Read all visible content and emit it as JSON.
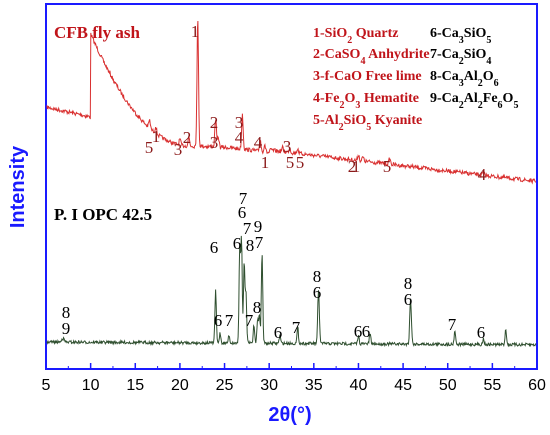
{
  "chart_data": {
    "type": "line",
    "xlabel": "2θ(°)",
    "ylabel": "Intensity",
    "xlim": [
      5,
      60
    ],
    "x_ticks": [
      "5",
      "10",
      "15",
      "20",
      "25",
      "30",
      "35",
      "40",
      "45",
      "50",
      "55",
      "60"
    ],
    "colors": {
      "frame": "#1a1aff",
      "cfb": "#d93030",
      "cfb_label": "#8b1a1a",
      "opc": "#2f4f2f",
      "opc_label": "#000000"
    },
    "series": [
      {
        "name": "CFB fly ash",
        "peaks": [
          {
            "x": 16.6,
            "label": "5"
          },
          {
            "x": 17.3,
            "label": "1"
          },
          {
            "x": 20.0,
            "label": "3"
          },
          {
            "x": 21.0,
            "label": "2"
          },
          {
            "x": 22.0,
            "label": "1"
          },
          {
            "x": 24.0,
            "label": "2"
          },
          {
            "x": 24.3,
            "label": "3"
          },
          {
            "x": 27.0,
            "label": "3"
          },
          {
            "x": 27.0,
            "label": "4"
          },
          {
            "x": 29.0,
            "label": "4"
          },
          {
            "x": 29.5,
            "label": "1"
          },
          {
            "x": 31.5,
            "label": "3"
          },
          {
            "x": 32.3,
            "label": "5"
          },
          {
            "x": 33.2,
            "label": "5"
          },
          {
            "x": 40.0,
            "label": "2"
          },
          {
            "x": 40.5,
            "label": "1"
          },
          {
            "x": 43.5,
            "label": "5"
          },
          {
            "x": 54.0,
            "label": "4"
          }
        ]
      },
      {
        "name": "P. I OPC 42.5",
        "peaks": [
          {
            "x": 6.8,
            "label": "8"
          },
          {
            "x": 7.0,
            "label": "9"
          },
          {
            "x": 24.0,
            "label": "6"
          },
          {
            "x": 24.5,
            "label": "6"
          },
          {
            "x": 25.5,
            "label": "7"
          },
          {
            "x": 26.7,
            "label": "6"
          },
          {
            "x": 26.9,
            "label": "7"
          },
          {
            "x": 27.2,
            "label": "6"
          },
          {
            "x": 27.4,
            "label": "7"
          },
          {
            "x": 28.3,
            "label": "8"
          },
          {
            "x": 28.7,
            "label": "9"
          },
          {
            "x": 28.9,
            "label": "7"
          },
          {
            "x": 29.2,
            "label": "8"
          },
          {
            "x": 31.2,
            "label": "7"
          },
          {
            "x": 33.2,
            "label": "6"
          },
          {
            "x": 35.5,
            "label": "7"
          },
          {
            "x": 35.6,
            "label": "8"
          },
          {
            "x": 40.0,
            "label": "6"
          },
          {
            "x": 41.3,
            "label": "6"
          },
          {
            "x": 45.8,
            "label": "6"
          },
          {
            "x": 45.9,
            "label": "8"
          },
          {
            "x": 50.8,
            "label": "6"
          },
          {
            "x": 54.0,
            "label": "7"
          },
          {
            "x": 56.5,
            "label": "6"
          }
        ]
      }
    ],
    "legend": [
      {
        "text": "1-SiO2 Quartz",
        "label": "1-SiO",
        "sub": "2",
        "rest": " Quartz",
        "color": "#c0141a"
      },
      {
        "text": "2-CaSO4 Anhydrite",
        "label": "2-CaSO",
        "sub": "4",
        "rest": " Anhydrite",
        "color": "#c0141a"
      },
      {
        "text": "3-f-CaO Free lime",
        "label": "3-f-CaO Free lime",
        "sub": "",
        "rest": "",
        "color": "#c0141a"
      },
      {
        "text": "4-Fe2O3 Hematite",
        "parts": [
          [
            "4-Fe",
            ""
          ],
          [
            "2",
            "sub"
          ],
          [
            "O",
            ""
          ],
          [
            "3",
            "sub"
          ],
          [
            "  Hematite",
            ""
          ]
        ],
        "color": "#c0141a"
      },
      {
        "text": "5-Al2SiO5 Kyanite",
        "parts": [
          [
            "5-Al",
            ""
          ],
          [
            "2",
            "sub"
          ],
          [
            "SiO",
            ""
          ],
          [
            "5",
            "sub"
          ],
          [
            " Kyanite",
            ""
          ]
        ],
        "color": "#c0141a"
      },
      {
        "text": "6-Ca3SiO5",
        "parts": [
          [
            "6-Ca",
            ""
          ],
          [
            "3",
            "sub"
          ],
          [
            "SiO",
            ""
          ],
          [
            "5",
            "sub"
          ]
        ],
        "color": "#000000"
      },
      {
        "text": "7-Ca2SiO4",
        "parts": [
          [
            "7-Ca",
            ""
          ],
          [
            "2",
            "sub"
          ],
          [
            "SiO",
            ""
          ],
          [
            "4",
            "sub"
          ]
        ],
        "color": "#000000"
      },
      {
        "text": "8-Ca3Al2O6",
        "parts": [
          [
            "8-Ca",
            ""
          ],
          [
            "3",
            "sub"
          ],
          [
            "Al",
            ""
          ],
          [
            "2",
            "sub"
          ],
          [
            "O",
            ""
          ],
          [
            "6",
            "sub"
          ]
        ],
        "color": "#000000"
      },
      {
        "text": "9-Ca2Al2Fe6O5",
        "parts": [
          [
            "9-Ca",
            ""
          ],
          [
            "2",
            "sub"
          ],
          [
            "Al",
            ""
          ],
          [
            "2",
            "sub"
          ],
          [
            "Fe",
            ""
          ],
          [
            "6",
            "sub"
          ],
          [
            "O",
            ""
          ],
          [
            "5",
            "sub"
          ]
        ],
        "color": "#000000"
      }
    ]
  }
}
